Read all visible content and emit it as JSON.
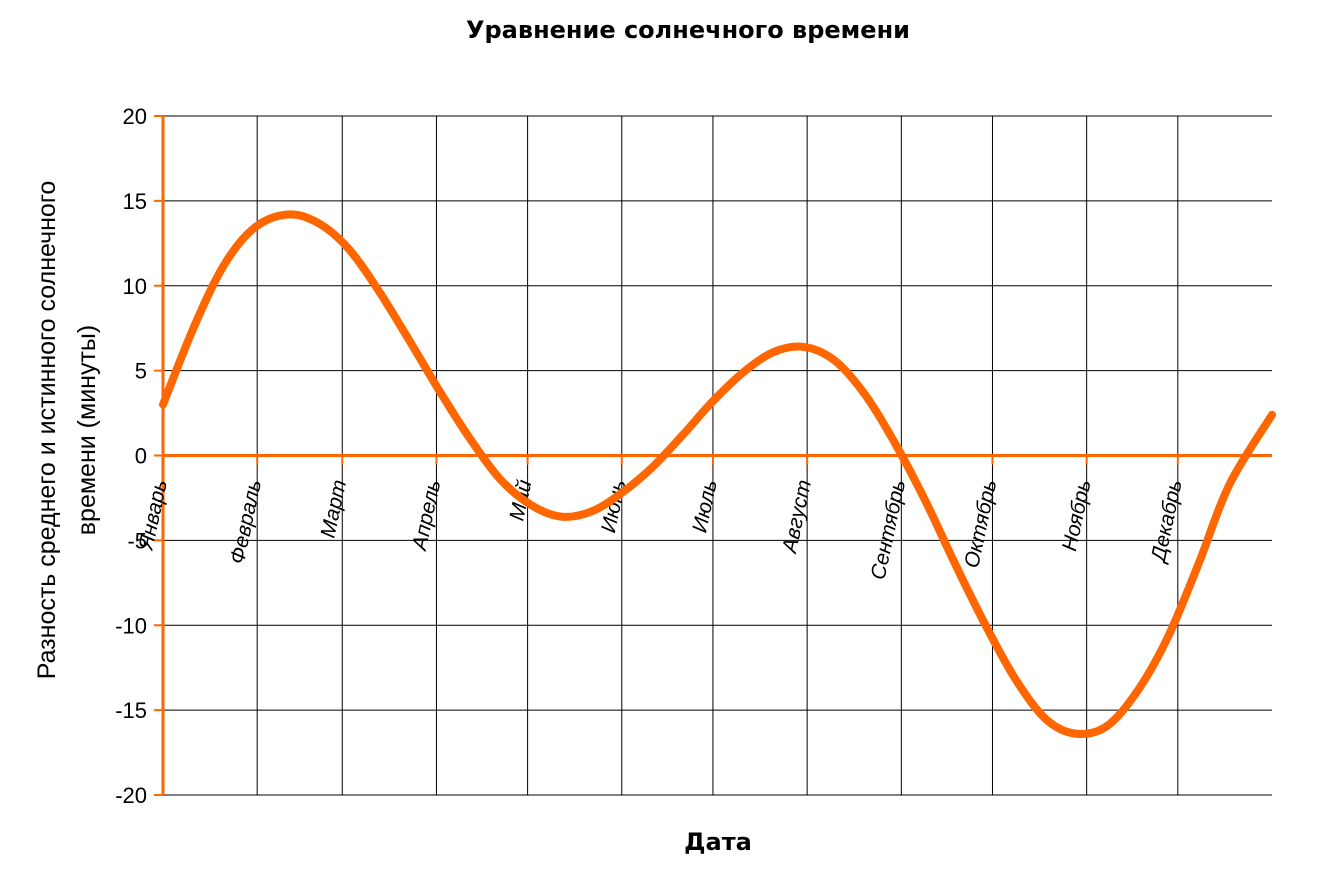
{
  "chart_data": {
    "type": "line",
    "title": "Уравнение солнечного времени",
    "xlabel": "Дата",
    "ylabel_line1": "Разность среднего и истинного солнечного",
    "ylabel_line2": "времени (минуты)",
    "ylim": [
      -20,
      20
    ],
    "yticks": [
      20,
      15,
      10,
      5,
      0,
      -5,
      -10,
      -15,
      -20
    ],
    "xlim": [
      1,
      366
    ],
    "grid": true,
    "month_labels": [
      "Январь",
      "Февраль",
      "Март",
      "Апрель",
      "Май",
      "Июнь",
      "Июль",
      "Август",
      "Сентябрь",
      "Октябрь",
      "Ноябрь",
      "Декабрь"
    ],
    "month_start_day": [
      1,
      32,
      60,
      91,
      121,
      152,
      182,
      213,
      244,
      274,
      305,
      335
    ],
    "series": [
      {
        "color": "#ff6600",
        "x": [
          1,
          11,
          21,
          31,
          42,
          52,
          62,
          72,
          82,
          92,
          102,
          112,
          122,
          132,
          142,
          152,
          162,
          172,
          182,
          192,
          202,
          212,
          222,
          232,
          242,
          252,
          262,
          272,
          282,
          292,
          302,
          312,
          322,
          332,
          342,
          352,
          366
        ],
        "y": [
          3.0,
          7.5,
          11.2,
          13.4,
          14.2,
          13.7,
          12.2,
          9.7,
          6.8,
          3.8,
          1.0,
          -1.4,
          -2.9,
          -3.6,
          -3.3,
          -2.2,
          -0.7,
          1.2,
          3.2,
          4.9,
          6.1,
          6.4,
          5.6,
          3.6,
          0.7,
          -2.7,
          -6.5,
          -10.1,
          -13.3,
          -15.6,
          -16.4,
          -15.9,
          -13.8,
          -10.6,
          -6.3,
          -1.7,
          2.4
        ]
      }
    ]
  }
}
